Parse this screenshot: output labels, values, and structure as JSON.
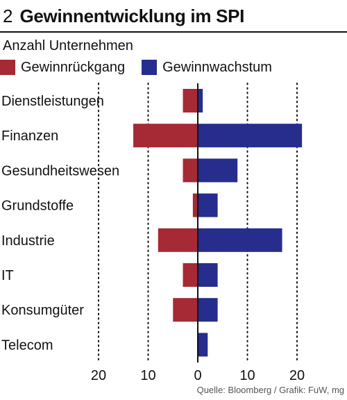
{
  "header": {
    "number": "2",
    "title": "Gewinnentwicklung im SPI"
  },
  "colors": {
    "decline": "#a52a35",
    "growth": "#262d8c"
  },
  "chart_data": {
    "type": "bar",
    "orientation": "horizontal-diverging",
    "subtitle": "Anzahl Unternehmen",
    "categories": [
      "Dienstleistungen",
      "Finanzen",
      "Gesundheitswesen",
      "Grundstoffe",
      "Industrie",
      "IT",
      "Konsumgüter",
      "Telecom"
    ],
    "series": [
      {
        "name": "Gewinnrückgang",
        "values": [
          3,
          13,
          3,
          1,
          8,
          3,
          5,
          0
        ]
      },
      {
        "name": "Gewinnwachstum",
        "values": [
          1,
          21,
          8,
          4,
          17,
          4,
          4,
          2
        ]
      }
    ],
    "xlim": [
      -20,
      20
    ],
    "ticks": [
      -20,
      -10,
      0,
      10,
      20
    ],
    "tick_labels": [
      "20",
      "10",
      "0",
      "10",
      "20"
    ],
    "grid": "dotted vertical at ±10, ±20",
    "legend_position": "top-left"
  },
  "source": "Quelle: Bloomberg / Grafik: FuW, mg"
}
